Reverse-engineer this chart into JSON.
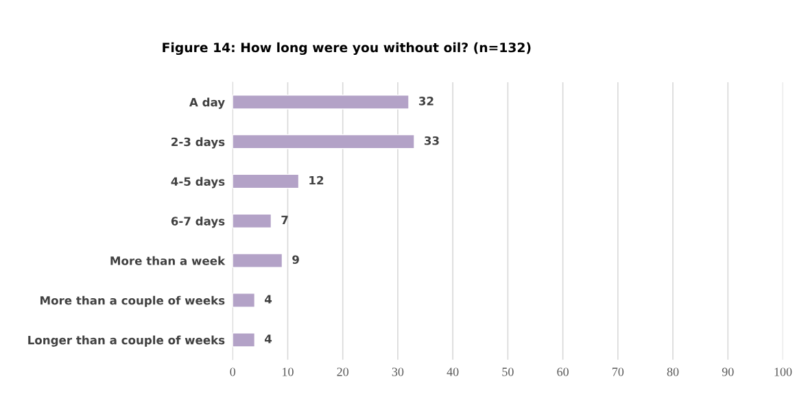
{
  "chart_data": {
    "type": "bar",
    "orientation": "horizontal",
    "title": "Figure 14: How long were you without oil? (n=132)",
    "categories": [
      "A day",
      "2-3 days",
      "4-5 days",
      "6-7 days",
      "More than a week",
      "More than a couple of weeks",
      "Longer than a couple of weeks"
    ],
    "values": [
      32,
      33,
      12,
      7,
      9,
      4,
      4
    ],
    "color": "#b3a2c7",
    "xlim": [
      0,
      100
    ],
    "xticks": [
      0,
      10,
      20,
      30,
      40,
      50,
      60,
      70,
      80,
      90,
      100
    ],
    "grid": "x",
    "data_labels": true
  }
}
